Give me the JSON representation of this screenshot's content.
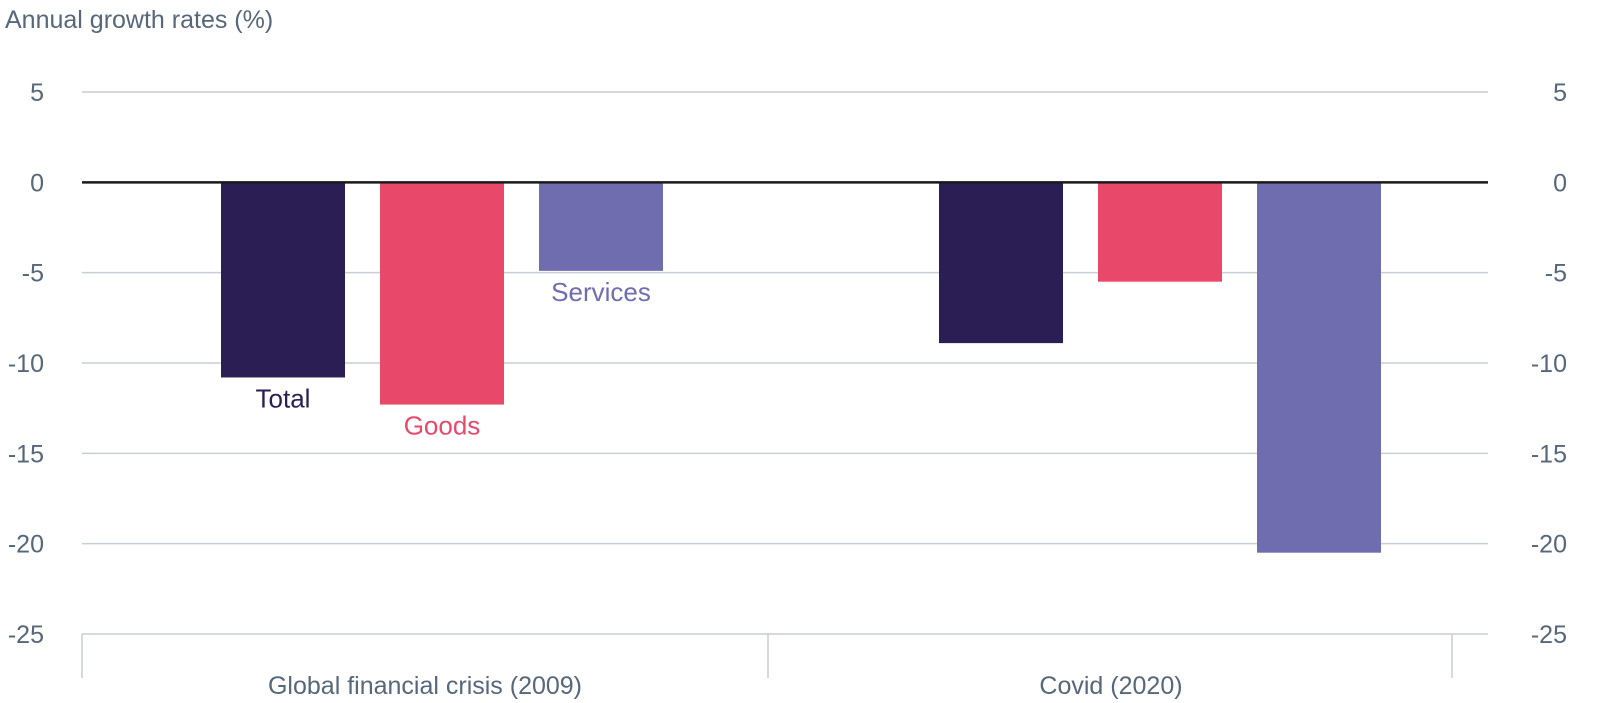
{
  "chart_data": {
    "type": "bar",
    "y_unit_label": "Annual growth rates (%)",
    "categories": [
      "Global financial crisis (2009)",
      "Covid (2020)"
    ],
    "series": [
      {
        "name": "Total",
        "color": "#2b1e55",
        "values": [
          -10.8,
          -8.9
        ]
      },
      {
        "name": "Goods",
        "color": "#e8496a",
        "values": [
          -12.3,
          -5.5
        ]
      },
      {
        "name": "Services",
        "color": "#6f6caf",
        "values": [
          -4.9,
          -20.5
        ]
      }
    ],
    "ylim": [
      -25,
      5
    ],
    "yticks": [
      5,
      0,
      -5,
      -10,
      -15,
      -20,
      -25
    ],
    "ytick_labels": [
      "5",
      "0",
      "-5",
      "-10",
      "-15",
      "-20",
      "-25"
    ],
    "y_axis_both_sides": true,
    "grid": true,
    "zero_line_color": "#1a1a1a",
    "grid_color": "#c9ced6",
    "text_color": "#57677a"
  }
}
